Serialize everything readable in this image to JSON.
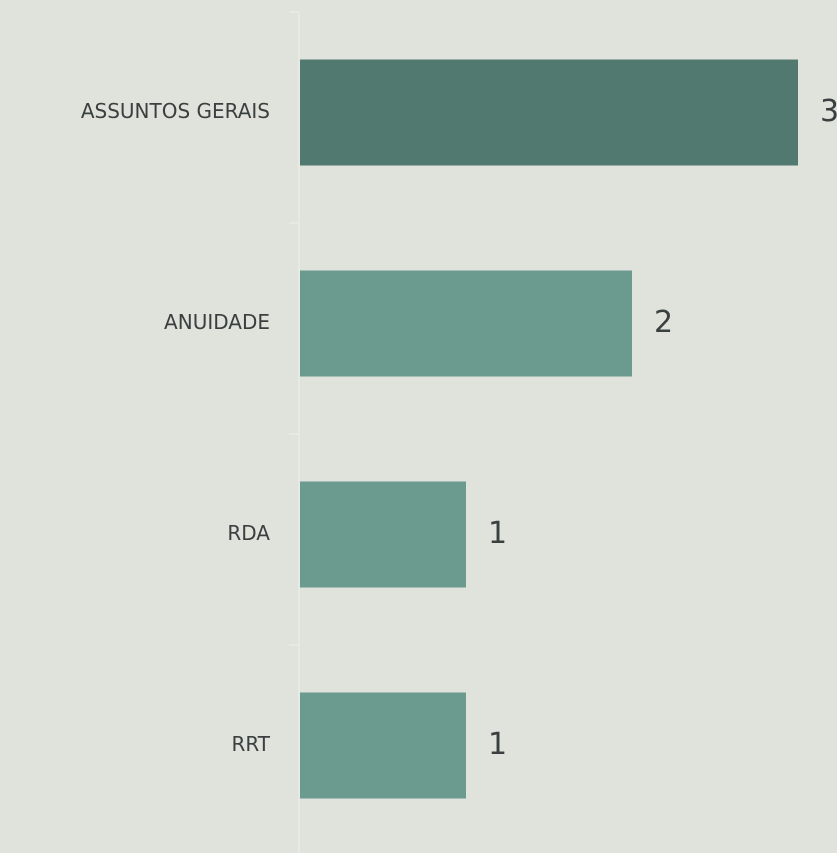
{
  "chart_data": {
    "type": "barh",
    "categories": [
      "ASSUNTOS GERAIS",
      "ANUIDADE",
      "RDA",
      "RRT"
    ],
    "values": [
      3,
      2,
      1,
      1
    ],
    "colors": [
      "#52796f",
      "#6b9a8e",
      "#6b9a8e",
      "#6b9a8e"
    ],
    "xlim": [
      0,
      3
    ]
  }
}
